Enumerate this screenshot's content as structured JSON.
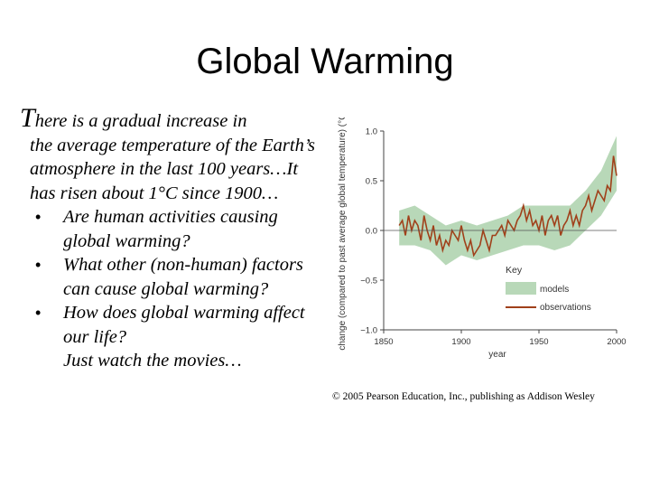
{
  "slide": {
    "title": "Global Warming",
    "intro_first": "T",
    "intro_line1": "here is a gradual increase in",
    "intro_rest": "the average temperature of the Earth’s atmosphere in the last 100 years…It has risen about 1°C since 1900…",
    "bullets": [
      "Are human activities causing global warming?",
      "What other (non-human) factors can cause global warming?",
      "How does global warming affect our life?"
    ],
    "closing": "Just watch the movies…",
    "copyright": "© 2005 Pearson Education, Inc., publishing as Addison Wesley"
  },
  "chart_data": {
    "type": "line",
    "title": "",
    "xlabel": "year",
    "ylabel": "change (compared to past average global temperature) (°C)",
    "xlim": [
      1850,
      2000
    ],
    "ylim": [
      -1.0,
      1.0
    ],
    "x_ticks": [
      "1850",
      "1900",
      "1950",
      "2000"
    ],
    "y_ticks": [
      "1.0",
      "0.5",
      "0.0",
      "−0.5",
      "−1.0"
    ],
    "legend_title": "Key",
    "legend_position": "lower-right",
    "series": [
      {
        "name": "models",
        "kind": "band",
        "color": "#b8d8b8",
        "x": [
          1860,
          1870,
          1880,
          1890,
          1900,
          1910,
          1920,
          1930,
          1940,
          1950,
          1960,
          1970,
          1980,
          1990,
          2000
        ],
        "lower": [
          -0.15,
          -0.15,
          -0.2,
          -0.35,
          -0.25,
          -0.3,
          -0.25,
          -0.2,
          -0.15,
          -0.15,
          -0.2,
          -0.15,
          0.0,
          0.15,
          0.4
        ],
        "upper": [
          0.2,
          0.25,
          0.15,
          0.05,
          0.1,
          0.05,
          0.1,
          0.15,
          0.25,
          0.25,
          0.25,
          0.25,
          0.4,
          0.6,
          0.95
        ]
      },
      {
        "name": "observations",
        "kind": "line",
        "color": "#a0401a",
        "x": [
          1860,
          1862,
          1864,
          1866,
          1868,
          1870,
          1872,
          1874,
          1876,
          1878,
          1880,
          1882,
          1884,
          1886,
          1888,
          1890,
          1892,
          1894,
          1896,
          1898,
          1900,
          1902,
          1904,
          1906,
          1908,
          1910,
          1912,
          1914,
          1916,
          1918,
          1920,
          1922,
          1924,
          1926,
          1928,
          1930,
          1932,
          1934,
          1936,
          1938,
          1940,
          1942,
          1944,
          1946,
          1948,
          1950,
          1952,
          1954,
          1956,
          1958,
          1960,
          1962,
          1964,
          1966,
          1968,
          1970,
          1972,
          1974,
          1976,
          1978,
          1980,
          1982,
          1984,
          1986,
          1988,
          1990,
          1992,
          1994,
          1996,
          1998,
          2000
        ],
        "y": [
          0.05,
          0.1,
          -0.05,
          0.15,
          0.0,
          0.1,
          0.05,
          -0.1,
          0.15,
          0.0,
          -0.1,
          0.05,
          -0.15,
          -0.05,
          -0.2,
          -0.1,
          -0.15,
          0.0,
          -0.05,
          -0.1,
          0.05,
          -0.1,
          -0.2,
          -0.1,
          -0.25,
          -0.2,
          -0.15,
          0.0,
          -0.1,
          -0.2,
          -0.05,
          -0.05,
          0.0,
          0.05,
          -0.05,
          0.1,
          0.05,
          0.0,
          0.1,
          0.15,
          0.25,
          0.1,
          0.2,
          0.05,
          0.1,
          0.0,
          0.15,
          -0.05,
          0.1,
          0.15,
          0.05,
          0.15,
          -0.05,
          0.05,
          0.1,
          0.2,
          0.05,
          0.15,
          0.05,
          0.2,
          0.25,
          0.35,
          0.2,
          0.3,
          0.4,
          0.35,
          0.3,
          0.45,
          0.4,
          0.75,
          0.55
        ]
      }
    ]
  }
}
